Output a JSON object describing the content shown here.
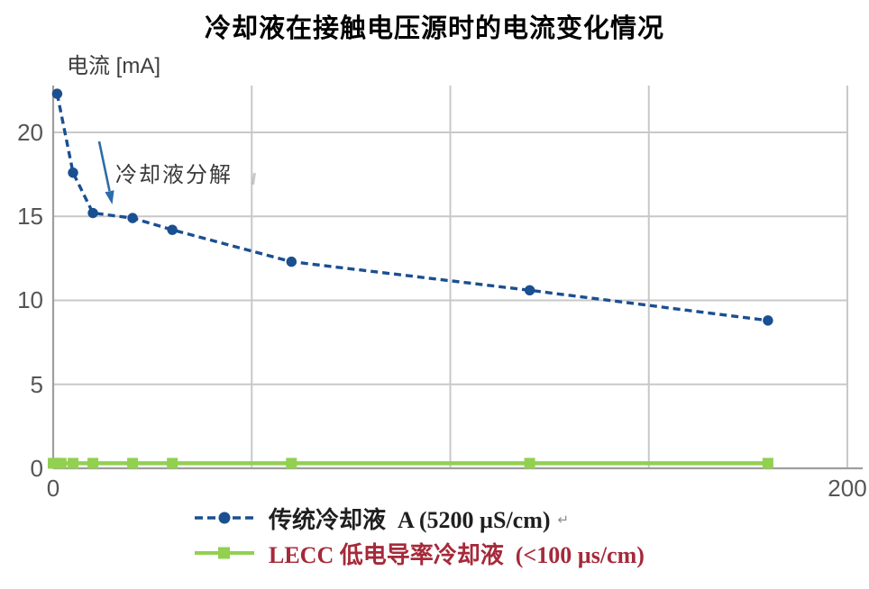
{
  "title": "冷却液在接触电压源时的电流变化情况",
  "y_axis_label": "电流 [mA]",
  "annotation": {
    "text": "冷却液分解"
  },
  "axes": {
    "y_tick_labels": [
      "20",
      "15",
      "10",
      "5",
      "0"
    ],
    "x_tick_labels": [
      "0",
      "200"
    ]
  },
  "legend": {
    "return_mark": "↵",
    "items": [
      {
        "label": "传统冷却液  A (5200 µS/cm)",
        "series_color": "#1a4f91",
        "text_color": "#1f1f1f",
        "line_style": "dashed",
        "marker": "circle"
      },
      {
        "label": "LECC 低电导率冷却液  (<100 µs/cm)",
        "series_color": "#92d050",
        "text_color": "#a52a3a",
        "line_style": "solid",
        "marker": "square"
      }
    ]
  },
  "colors": {
    "traditional_blue": "#1a4f91",
    "lecc_green": "#92d050",
    "lecc_text_red": "#a52a3a",
    "arrow_blue": "#2e6ca8",
    "gridline_gray": "#c8c8c8",
    "axis_gray": "#9e9e9e",
    "tick_text_gray": "#555555"
  },
  "chart_data": {
    "type": "line",
    "title": "冷却液在接触电压源时的电流变化情况",
    "xlabel": "",
    "ylabel": "电流 [mA]",
    "xlim": [
      0,
      200
    ],
    "ylim": [
      0,
      22.7
    ],
    "x_ticks": [
      0,
      200
    ],
    "y_ticks": [
      0,
      5,
      10,
      15,
      20
    ],
    "x_gridlines": [
      50,
      100,
      150,
      200
    ],
    "grid": true,
    "legend_position": "bottom",
    "annotation": {
      "text": "冷却液分解",
      "points_at_x": 15,
      "points_at_y": 15.2
    },
    "series": [
      {
        "name": "传统冷却液 A (5200 µS/cm)",
        "color": "#1a4f91",
        "line_style": "dashed",
        "marker": "circle",
        "points": [
          [
            1,
            22.3
          ],
          [
            5,
            17.6
          ],
          [
            10,
            15.2
          ],
          [
            20,
            14.9
          ],
          [
            30,
            14.2
          ],
          [
            60,
            12.3
          ],
          [
            120,
            10.6
          ],
          [
            180,
            8.8
          ]
        ]
      },
      {
        "name": "LECC 低电导率冷却液 (<100 µs/cm)",
        "color": "#92d050",
        "line_style": "solid",
        "marker": "square",
        "points": [
          [
            0,
            0.3
          ],
          [
            1,
            0.3
          ],
          [
            2,
            0.3
          ],
          [
            5,
            0.3
          ],
          [
            10,
            0.3
          ],
          [
            20,
            0.3
          ],
          [
            30,
            0.3
          ],
          [
            60,
            0.3
          ],
          [
            120,
            0.3
          ],
          [
            180,
            0.3
          ]
        ]
      }
    ]
  }
}
